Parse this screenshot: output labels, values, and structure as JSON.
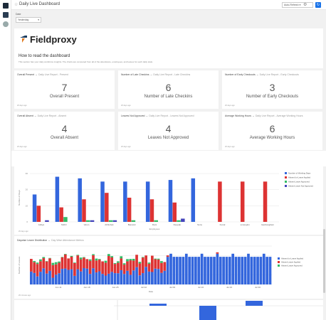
{
  "app": {
    "title": "Daily Live Dashboard",
    "refresh_label": "Auto-Refresh",
    "refresh_icon": "refresh-icon"
  },
  "filter": {
    "label": "Date",
    "value": "Yesterday"
  },
  "banner": {
    "brand": "Fieldproxy",
    "heading": "How to read the dashboard",
    "subtext": "This section has your daily workforce insights. The charts are computed from all of the attendance, employees, and leaves for each daily stats."
  },
  "cards": [
    {
      "title": "Overall Present",
      "source": "Daily Live Report - Present",
      "value": "7",
      "label": "Overall Present",
      "ago": "26 days ago"
    },
    {
      "title": "Number of Late Checkins",
      "source": "Daily Live Report - Late Checkins",
      "value": "6",
      "label": "Number of Late Checkins",
      "ago": "26 days ago"
    },
    {
      "title": "Number of Early Checkouts",
      "source": "Daily Live Report - Early Checkouts",
      "value": "3",
      "label": "Number of Early Checkouts",
      "ago": "26 days ago"
    },
    {
      "title": "Overall Absent",
      "source": "Daily Live Report - Absent",
      "value": "4",
      "label": "Overall Absent",
      "ago": "26 days ago"
    },
    {
      "title": "Leaves Not Approved",
      "source": "Daily Live Report - Leaves Not Approved",
      "value": "4",
      "label": "Leaves Not Approved",
      "ago": "26 days ago"
    },
    {
      "title": "Average Working Hours",
      "source": "Daily Live Report - Average Working Hours",
      "value": "6",
      "label": "Average Working Hours",
      "ago": "26 days ago"
    }
  ],
  "chart_data": [
    {
      "type": "bar",
      "ylabel": "Number of Days",
      "xlabel": "Employees",
      "ylim": [
        0,
        30
      ],
      "categories": [
        "Aditya",
        "Nikhil",
        "Varun",
        "Abhishek",
        "Banwari",
        "Rani",
        "Deepak",
        "Sonu",
        "Kunal",
        "surenglon",
        "Isashangbam"
      ],
      "series": [
        {
          "name": "Number of Working Days",
          "color": "#3366dd",
          "values": [
            17,
            28,
            27,
            25,
            25,
            25,
            26,
            27,
            0,
            0,
            0
          ]
        },
        {
          "name": "Absent for Leave Applied",
          "color": "#dd3333",
          "values": [
            10,
            9,
            14,
            18,
            15,
            14,
            12,
            0,
            25,
            25,
            25
          ]
        },
        {
          "name": "Absent Leave Approved",
          "color": "#33bb66",
          "values": [
            0,
            3,
            1,
            1,
            1,
            1,
            1,
            0,
            0,
            0,
            0
          ]
        },
        {
          "name": "Absent Leave Not Approved",
          "color": "#4444bb",
          "values": [
            1,
            0,
            1,
            1,
            0,
            0,
            2,
            0,
            0,
            0,
            0
          ]
        }
      ],
      "ago": "26 days ago"
    },
    {
      "type": "bar",
      "title": "Daywise Leave Distribution",
      "source": "Day Wise Attendance Metrics",
      "ylabel": "Number of Leaves",
      "xlabel": "Date",
      "ticks": [
        "Jun 11",
        "Jun 18",
        "Jun 25",
        "Jul 02",
        "Jul 09",
        "Jul 16",
        "Jul 23",
        "Jul 30"
      ],
      "series": [
        {
          "name": "Absent for Leave Applied",
          "color": "#3366dd"
        },
        {
          "name": "Absent Leave Applied",
          "color": "#dd3333"
        },
        {
          "name": "Absent Leave Approved",
          "color": "#33bb66"
        }
      ],
      "ago": "26 minutes ago"
    }
  ]
}
